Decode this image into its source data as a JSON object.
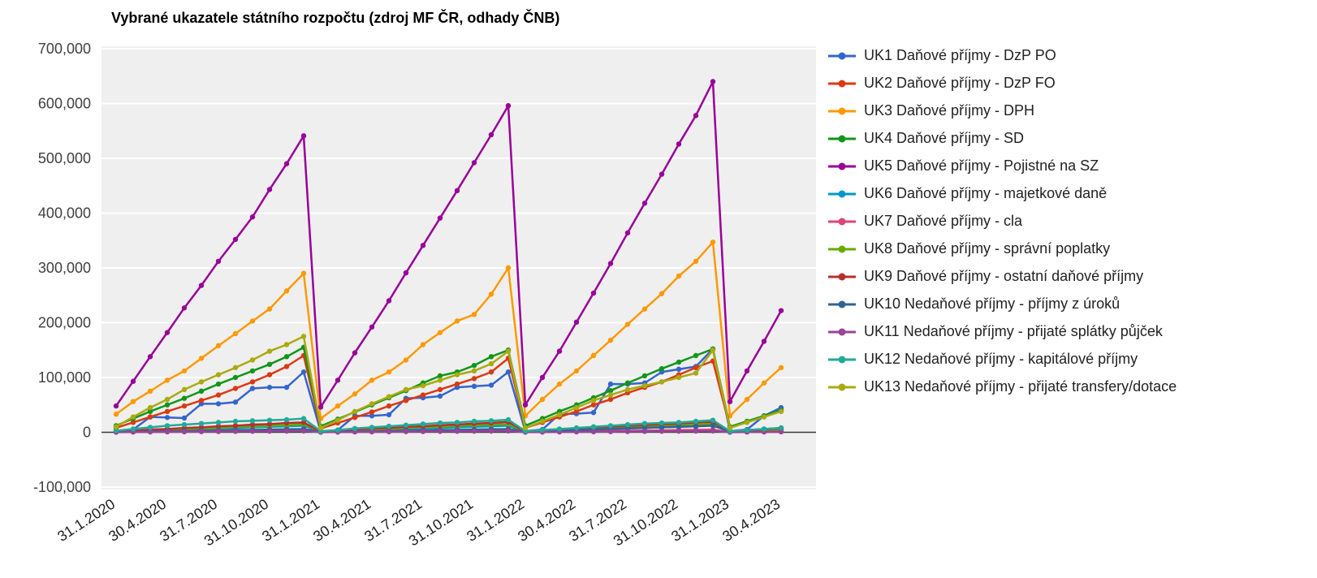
{
  "chart_data": {
    "type": "line",
    "title": "Vybrané ukazatele státního rozpočtu (zdroj MF ČR, odhady ČNB)",
    "xlabel": "",
    "ylabel": "",
    "ylim": [
      -100000,
      700000
    ],
    "yticks": [
      700000,
      600000,
      500000,
      400000,
      300000,
      200000,
      100000,
      0,
      -100000
    ],
    "x_labels": [
      "31.1.2020",
      "30.4.2020",
      "31.7.2020",
      "31.10.2020",
      "31.1.2021",
      "30.4.2021",
      "31.7.2021",
      "31.10.2021",
      "31.1.2022",
      "30.4.2022",
      "31.7.2022",
      "31.10.2022",
      "31.1.2023",
      "30.4.2023"
    ],
    "x_label_step": 3,
    "points_per_series": 40,
    "layout": {
      "legend_position": "right",
      "grid": true,
      "plot_background": "#efefef",
      "grid_color": "#ffffff",
      "zero_line_color": "#333333"
    },
    "series": [
      {
        "name": "UK1 Daňové příjmy - DzP PO",
        "color": "#3366CC",
        "values": [
          2000,
          5000,
          28000,
          27000,
          26000,
          52000,
          52000,
          55000,
          80000,
          82000,
          82000,
          110000,
          1000,
          4000,
          30000,
          30000,
          32000,
          62000,
          63000,
          66000,
          82000,
          84000,
          86000,
          110000,
          2000,
          5000,
          33000,
          34000,
          36000,
          88000,
          88000,
          90000,
          110000,
          115000,
          120000,
          152000,
          2000,
          5000,
          30000,
          45000
        ]
      },
      {
        "name": "UK2 Daňové příjmy - DzP FO",
        "color": "#DC3912",
        "values": [
          8000,
          18000,
          28000,
          38000,
          48000,
          58000,
          68000,
          80000,
          92000,
          105000,
          120000,
          140000,
          7000,
          17000,
          27000,
          37000,
          48000,
          58000,
          68000,
          78000,
          88000,
          98000,
          110000,
          135000,
          8000,
          18000,
          28000,
          38000,
          50000,
          60000,
          72000,
          82000,
          92000,
          105000,
          118000,
          130000,
          9000,
          19000,
          29000,
          40000
        ]
      },
      {
        "name": "UK3 Daňové příjmy - DPH",
        "color": "#FF9900",
        "values": [
          33000,
          56000,
          75000,
          95000,
          112000,
          135000,
          158000,
          180000,
          203000,
          225000,
          258000,
          290000,
          25000,
          48000,
          70000,
          95000,
          110000,
          132000,
          160000,
          182000,
          203000,
          215000,
          252000,
          300000,
          30000,
          60000,
          88000,
          112000,
          140000,
          168000,
          197000,
          225000,
          253000,
          285000,
          312000,
          347000,
          30000,
          60000,
          90000,
          118000
        ]
      },
      {
        "name": "UK4 Daňové příjmy - SD",
        "color": "#109618",
        "values": [
          12000,
          25000,
          38000,
          50000,
          62000,
          75000,
          88000,
          100000,
          112000,
          124000,
          138000,
          155000,
          11000,
          24000,
          37000,
          50000,
          63000,
          76000,
          90000,
          103000,
          110000,
          122000,
          138000,
          150000,
          12000,
          25000,
          38000,
          50000,
          63000,
          76000,
          90000,
          103000,
          116000,
          128000,
          140000,
          152000,
          10000,
          20000,
          30000,
          40000
        ]
      },
      {
        "name": "UK5 Daňové příjmy - Pojistné na SZ",
        "color": "#990099",
        "values": [
          48000,
          93000,
          138000,
          182000,
          227000,
          268000,
          312000,
          352000,
          393000,
          443000,
          490000,
          541000,
          46000,
          95000,
          145000,
          192000,
          240000,
          291000,
          341000,
          391000,
          441000,
          492000,
          543000,
          596000,
          50000,
          100000,
          148000,
          201000,
          254000,
          308000,
          364000,
          418000,
          471000,
          526000,
          578000,
          640000,
          56000,
          112000,
          166000,
          222000
        ]
      },
      {
        "name": "UK6 Daňové příjmy - majetkové daně",
        "color": "#0099C6",
        "values": [
          1000,
          2000,
          3000,
          4000,
          5000,
          6000,
          7000,
          8000,
          9000,
          10000,
          11000,
          12000,
          1000,
          2000,
          3000,
          4000,
          5000,
          6000,
          7000,
          8000,
          9000,
          10000,
          11000,
          12000,
          1000,
          2000,
          3000,
          4000,
          5000,
          6000,
          7000,
          8000,
          9000,
          10000,
          11000,
          13000,
          1000,
          2000,
          3000,
          4000
        ]
      },
      {
        "name": "UK7 Daňové příjmy - cla",
        "color": "#DD4477",
        "values": [
          300,
          600,
          900,
          1200,
          1500,
          1800,
          2100,
          2400,
          2700,
          3000,
          3300,
          3600,
          300,
          600,
          900,
          1200,
          1500,
          1800,
          2100,
          2400,
          2700,
          3000,
          3300,
          3600,
          400,
          800,
          1200,
          1600,
          2000,
          2400,
          2800,
          3200,
          3600,
          4000,
          4400,
          4800,
          400,
          800,
          1200,
          1600
        ]
      },
      {
        "name": "UK8 Daňové příjmy - správní poplatky",
        "color": "#66AA00",
        "values": [
          1000,
          2000,
          4000,
          5000,
          6000,
          7000,
          8000,
          10000,
          11000,
          12000,
          13000,
          15000,
          1000,
          2000,
          4000,
          5000,
          6000,
          8000,
          9000,
          10000,
          12000,
          13000,
          14000,
          15000,
          1000,
          2000,
          4000,
          5000,
          7000,
          8000,
          9000,
          11000,
          12000,
          13000,
          14000,
          16000,
          1000,
          2000,
          4000,
          5000
        ]
      },
      {
        "name": "UK9 Daňové příjmy - ostatní daňové příjmy",
        "color": "#B82E2E",
        "values": [
          1000,
          3000,
          5000,
          6000,
          8000,
          9000,
          11000,
          12000,
          14000,
          15000,
          17000,
          18000,
          1000,
          3000,
          5000,
          7000,
          8000,
          10000,
          11000,
          13000,
          14000,
          16000,
          17000,
          19000,
          1000,
          3000,
          5000,
          7000,
          9000,
          10000,
          12000,
          13000,
          15000,
          16000,
          18000,
          19000,
          1000,
          3000,
          5000,
          7000
        ]
      },
      {
        "name": "UK10 Nedaňové příjmy - příjmy z úroků",
        "color": "#316395",
        "values": [
          500,
          1000,
          1500,
          2000,
          2500,
          3000,
          3500,
          4000,
          4500,
          5000,
          5500,
          6000,
          500,
          1000,
          1500,
          2000,
          2500,
          3000,
          3500,
          4000,
          4500,
          5000,
          5500,
          6000,
          1000,
          2000,
          3000,
          4000,
          5000,
          6000,
          7000,
          8000,
          9000,
          10000,
          11000,
          12000,
          2000,
          4000,
          6000,
          8000
        ]
      },
      {
        "name": "UK11 Nedaňové příjmy - přijaté splátky půjček",
        "color": "#994499",
        "values": [
          200,
          400,
          600,
          800,
          1000,
          1200,
          1400,
          1600,
          1800,
          2000,
          2200,
          2400,
          200,
          400,
          600,
          800,
          1000,
          1200,
          1400,
          1600,
          1800,
          2000,
          2200,
          2400,
          200,
          400,
          600,
          800,
          1000,
          1200,
          1400,
          1600,
          1800,
          2000,
          2200,
          2400,
          200,
          400,
          600,
          800
        ]
      },
      {
        "name": "UK12 Nedaňové příjmy - kapitálové příjmy",
        "color": "#22AA99",
        "values": [
          3000,
          6000,
          9000,
          12000,
          14000,
          16000,
          18000,
          20000,
          21000,
          22000,
          23000,
          25000,
          2000,
          4000,
          7000,
          9000,
          11000,
          13000,
          15000,
          17000,
          18000,
          20000,
          21000,
          23000,
          2000,
          4000,
          6000,
          8000,
          10000,
          12000,
          14000,
          16000,
          17000,
          18000,
          20000,
          22000,
          2000,
          4000,
          6000,
          8000
        ]
      },
      {
        "name": "UK13 Nedaňové příjmy - přijaté transfery/dotace",
        "color": "#AAAA11",
        "values": [
          10000,
          28000,
          45000,
          60000,
          78000,
          92000,
          105000,
          118000,
          132000,
          148000,
          160000,
          175000,
          8000,
          22000,
          38000,
          52000,
          65000,
          78000,
          85000,
          95000,
          105000,
          112000,
          125000,
          148000,
          8000,
          20000,
          32000,
          45000,
          58000,
          68000,
          78000,
          85000,
          92000,
          100000,
          108000,
          150000,
          8000,
          18000,
          28000,
          38000
        ]
      }
    ]
  }
}
